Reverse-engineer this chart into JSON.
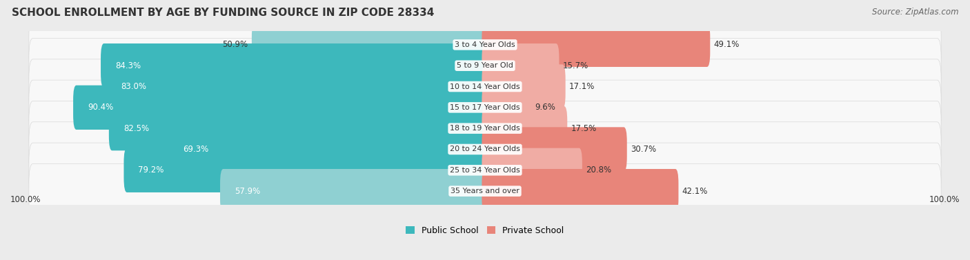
{
  "title": "SCHOOL ENROLLMENT BY AGE BY FUNDING SOURCE IN ZIP CODE 28334",
  "source": "Source: ZipAtlas.com",
  "categories": [
    "3 to 4 Year Olds",
    "5 to 9 Year Old",
    "10 to 14 Year Olds",
    "15 to 17 Year Olds",
    "18 to 19 Year Olds",
    "20 to 24 Year Olds",
    "25 to 34 Year Olds",
    "35 Years and over"
  ],
  "public_values": [
    50.9,
    84.3,
    83.0,
    90.4,
    82.5,
    69.3,
    79.2,
    57.9
  ],
  "private_values": [
    49.1,
    15.7,
    17.1,
    9.6,
    17.5,
    30.7,
    20.8,
    42.1
  ],
  "public_colors": [
    "#8fd0d2",
    "#3db8bc",
    "#3db8bc",
    "#3db8bc",
    "#3db8bc",
    "#3db8bc",
    "#3db8bc",
    "#8fd0d2"
  ],
  "private_colors": [
    "#e8857a",
    "#f0aca4",
    "#f0aca4",
    "#f0aca4",
    "#f0aca4",
    "#e8857a",
    "#f0aca4",
    "#e8857a"
  ],
  "background_color": "#ebebeb",
  "row_bg_color": "#f8f8f8",
  "row_bg_border": "#d8d8d8",
  "axis_label_left": "100.0%",
  "axis_label_right": "100.0%",
  "title_fontsize": 11,
  "source_fontsize": 8.5,
  "bar_label_fontsize": 8.5,
  "category_fontsize": 8
}
